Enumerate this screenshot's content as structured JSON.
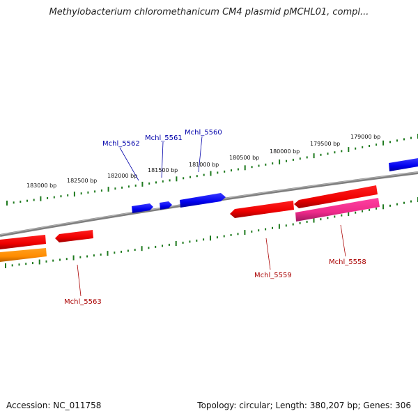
{
  "title": "Methylobacterium chloromethanicum CM4 plasmid pMCHL01, compl...",
  "footer": {
    "accession": "Accession: NC_011758",
    "summary": "Topology: circular; Length: 380,207 bp; Genes: 306"
  },
  "colors": {
    "backbone": "#7f7f7f",
    "tick": "#1e7a1e",
    "forward_gene": "#0000ee",
    "reverse_gene": "#ee0000",
    "rna_gene": "#ff8c00",
    "pseudo_gene": "#ee2a8a",
    "forward_label": "#0000aa",
    "reverse_label": "#aa0000"
  },
  "scale": {
    "unit": "bp",
    "labels": [
      "183000 bp",
      "182500 bp",
      "182000 bp",
      "181500 bp",
      "181000 bp",
      "180500 bp",
      "180000 bp",
      "179500 bp",
      "179000 bp"
    ]
  },
  "genes": [
    {
      "name": "Mchl_5562",
      "strand": "forward",
      "kind": "cds"
    },
    {
      "name": "Mchl_5561",
      "strand": "forward",
      "kind": "cds"
    },
    {
      "name": "Mchl_5560",
      "strand": "forward",
      "kind": "cds"
    },
    {
      "name": "Mchl_5559",
      "strand": "reverse",
      "kind": "cds"
    },
    {
      "name": "Mchl_5558",
      "strand": "reverse",
      "kind": "cds"
    },
    {
      "name": "Mchl_5563",
      "strand": "reverse",
      "kind": "cds"
    }
  ]
}
